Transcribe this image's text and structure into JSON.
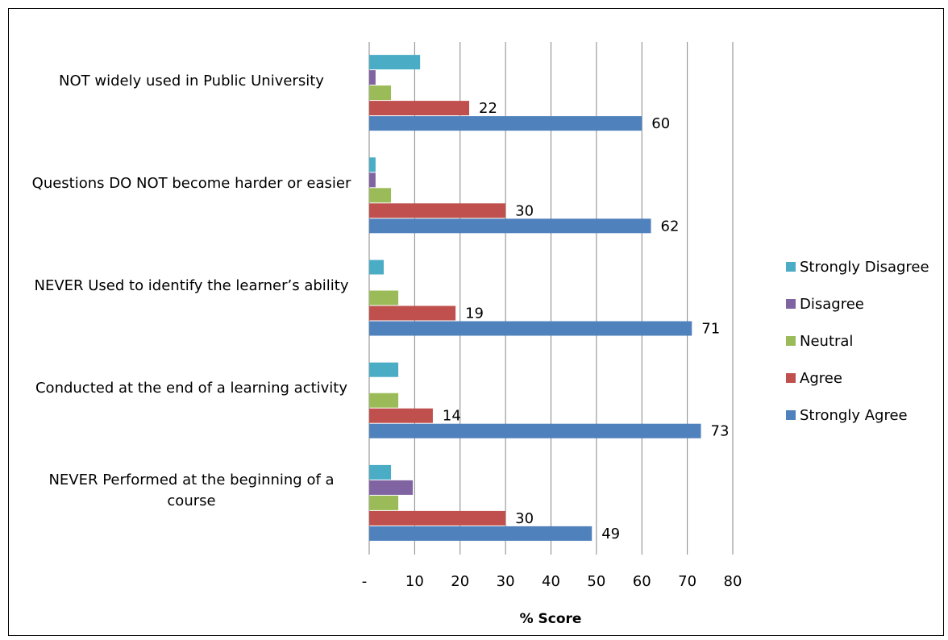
{
  "chart_data": {
    "type": "hbar",
    "categories": [
      "NOT widely used in Public University",
      "Questions DO NOT become harder or easier",
      "NEVER Used to identify the learner’s ability",
      "Conducted at the end of a learning activity",
      "NEVER Performed at the beginning of a course"
    ],
    "series": [
      {
        "name": "Strongly Disagree",
        "color": "#4bacc6",
        "values": [
          11.2,
          1.4,
          3.2,
          6.4,
          4.8
        ],
        "show_labels": false
      },
      {
        "name": "Disagree",
        "color": "#8064a2",
        "values": [
          1.4,
          1.4,
          0,
          0,
          9.6
        ],
        "show_labels": false
      },
      {
        "name": "Neutral",
        "color": "#9bbb59",
        "values": [
          4.8,
          4.8,
          6.4,
          6.4,
          6.4
        ],
        "show_labels": false
      },
      {
        "name": "Agree",
        "color": "#c0504d",
        "values": [
          22,
          30,
          19,
          14,
          30
        ],
        "show_labels": true
      },
      {
        "name": "Strongly Agree",
        "color": "#4f81bd",
        "values": [
          60,
          62,
          71,
          73,
          49
        ],
        "show_labels": true
      }
    ],
    "xlabel": "% Score",
    "xlim": [
      0,
      80
    ],
    "xticks": [
      {
        "value": 0,
        "label": "-"
      },
      10,
      20,
      30,
      40,
      50,
      60,
      70,
      80
    ],
    "grid": true,
    "legend": "right"
  }
}
